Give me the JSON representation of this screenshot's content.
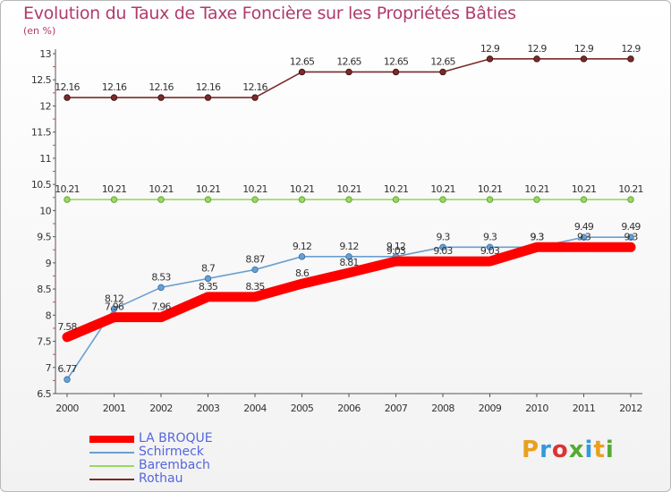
{
  "title": "Evolution du Taux de Taxe Foncière sur les Propriétés Bâties",
  "unit_label": "(en %)",
  "chart_data": {
    "type": "line",
    "title": "Evolution du Taux de Taxe Foncière sur les Propriétés Bâties",
    "ylabel": "(en %)",
    "x": [
      "2000",
      "2001",
      "2002",
      "2003",
      "2004",
      "2005",
      "2006",
      "2007",
      "2008",
      "2009",
      "2010",
      "2011",
      "2012"
    ],
    "ylim": [
      6.5,
      13
    ],
    "yticks": [
      "6.5",
      "7",
      "7.5",
      "8",
      "8.5",
      "9",
      "9.5",
      "10",
      "10.5",
      "11",
      "11.5",
      "12",
      "12.5",
      "13"
    ],
    "grid": false,
    "legend_position": "bottom-left",
    "series": [
      {
        "name": "LA BROQUE",
        "color": "#ff0000",
        "values": [
          7.58,
          7.96,
          7.96,
          8.35,
          8.35,
          8.6,
          8.81,
          9.03,
          9.03,
          9.03,
          9.3,
          9.3,
          9.3
        ],
        "labels": [
          "7.58",
          "7.96",
          "7.96",
          "8.35",
          "8.35",
          "8.6",
          "8.81",
          "9.03",
          "9.03",
          "9.03",
          "9.3",
          "9.3",
          "9.3"
        ]
      },
      {
        "name": "Schirmeck",
        "color": "#6a9fd0",
        "values": [
          6.77,
          8.12,
          8.53,
          8.7,
          8.87,
          9.12,
          9.12,
          9.12,
          9.3,
          9.3,
          9.3,
          9.49,
          9.49
        ],
        "labels": [
          "6.77",
          "8.12",
          "8.53",
          "8.7",
          "8.87",
          "9.12",
          "9.12",
          "9.12",
          "9.3",
          "9.3",
          "9.3",
          "9.49",
          "9.49"
        ]
      },
      {
        "name": "Barembach",
        "color": "#99d860",
        "values": [
          10.21,
          10.21,
          10.21,
          10.21,
          10.21,
          10.21,
          10.21,
          10.21,
          10.21,
          10.21,
          10.21,
          10.21,
          10.21
        ],
        "labels": [
          "10.21",
          "10.21",
          "10.21",
          "10.21",
          "10.21",
          "10.21",
          "10.21",
          "10.21",
          "10.21",
          "10.21",
          "10.21",
          "10.21",
          "10.21"
        ]
      },
      {
        "name": "Rothau",
        "color": "#7a2a2a",
        "values": [
          12.16,
          12.16,
          12.16,
          12.16,
          12.16,
          12.65,
          12.65,
          12.65,
          12.65,
          12.9,
          12.9,
          12.9,
          12.9
        ],
        "labels": [
          "12.16",
          "12.16",
          "12.16",
          "12.16",
          "12.16",
          "12.65",
          "12.65",
          "12.65",
          "12.65",
          "12.9",
          "12.9",
          "12.9",
          "12.9"
        ]
      }
    ]
  },
  "legend": [
    {
      "label": "LA BROQUE",
      "color": "#ff0000"
    },
    {
      "label": "Schirmeck",
      "color": "#6a9fd0"
    },
    {
      "label": "Barembach",
      "color": "#99d860"
    },
    {
      "label": "Rothau",
      "color": "#7a2a2a"
    }
  ],
  "logo": {
    "letters": [
      "P",
      "r",
      "o",
      "x",
      "i",
      "t",
      "i"
    ],
    "colors": [
      "#e8a020",
      "#3399dd",
      "#dd3333",
      "#55aa33",
      "#3399dd",
      "#e8a020",
      "#55aa33"
    ]
  }
}
